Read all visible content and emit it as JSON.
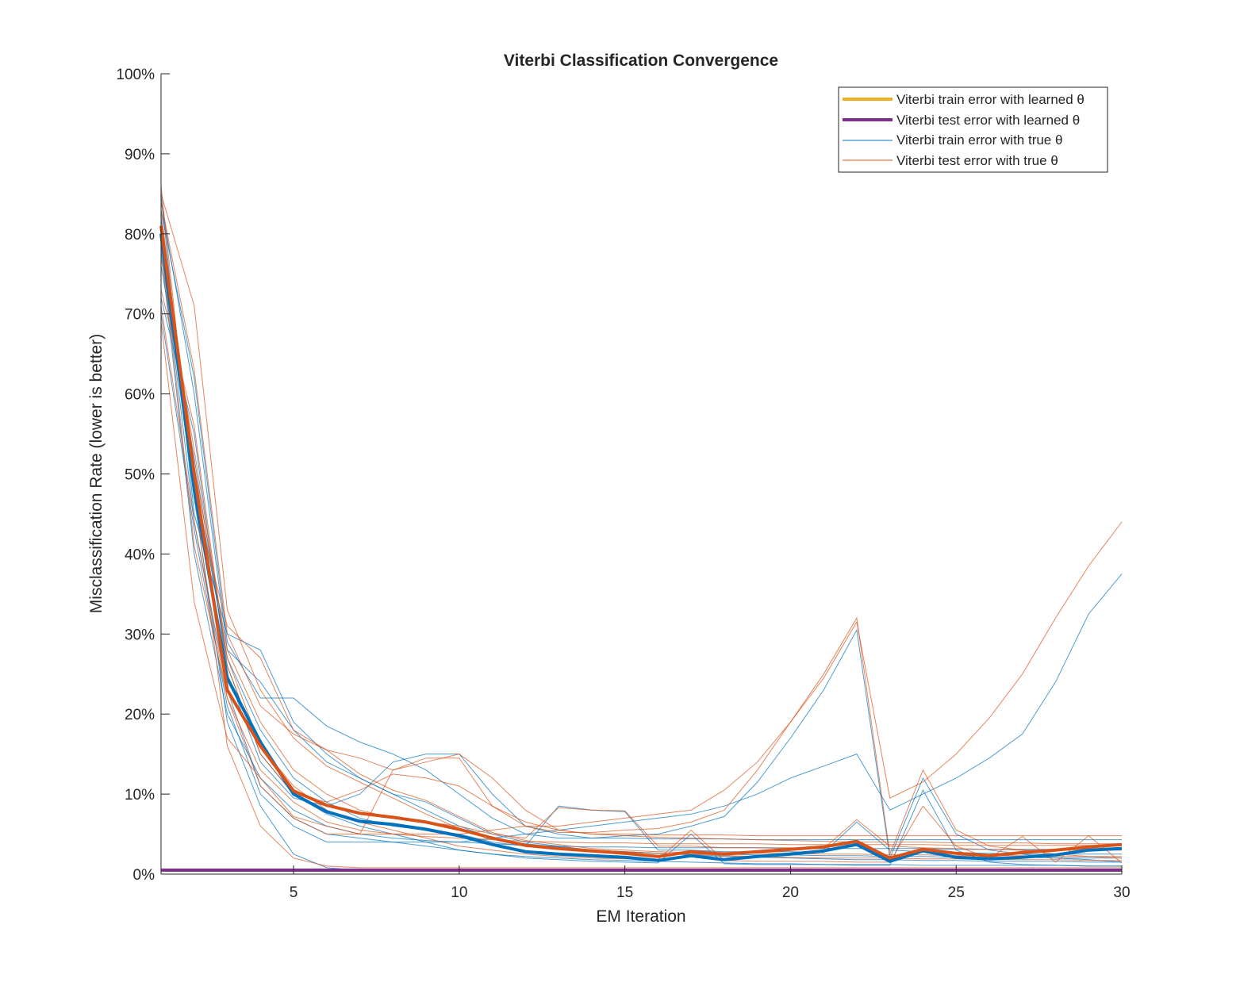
{
  "chart_data": {
    "type": "line",
    "title": "Viterbi Classification Convergence",
    "xlabel": "EM Iteration",
    "ylabel": "Misclassification Rate (lower is better)",
    "xlim": [
      1,
      30
    ],
    "ylim": [
      0,
      1
    ],
    "x_ticks": [
      5,
      10,
      15,
      20,
      25,
      30
    ],
    "y_ticks": [
      0,
      0.1,
      0.2,
      0.3,
      0.4,
      0.5,
      0.6,
      0.7,
      0.8,
      0.9,
      1.0
    ],
    "y_tick_labels": [
      "0%",
      "10%",
      "20%",
      "30%",
      "40%",
      "50%",
      "60%",
      "70%",
      "80%",
      "90%",
      "100%"
    ],
    "legend_position": "top-right",
    "legend": [
      {
        "label": "Viterbi train error with learned θ",
        "color": "#EDB120",
        "width": "thick"
      },
      {
        "label": "Viterbi test error with learned θ",
        "color": "#7E2F8E",
        "width": "thick"
      },
      {
        "label": "Viterbi train error with true θ",
        "color": "#0072BD",
        "width": "thin"
      },
      {
        "label": "Viterbi test error with true θ",
        "color": "#D95319",
        "width": "thin"
      }
    ],
    "mean_series": [
      {
        "color": "#0072BD",
        "x": [
          1,
          2,
          3,
          4,
          5,
          6,
          7,
          8,
          9,
          10,
          11,
          12,
          13,
          14,
          15,
          16,
          17,
          18,
          19,
          20,
          21,
          22,
          23,
          24,
          25,
          26,
          27,
          28,
          29,
          30
        ],
        "values": [
          0.8,
          0.48,
          0.245,
          0.165,
          0.1,
          0.078,
          0.066,
          0.062,
          0.056,
          0.048,
          0.037,
          0.028,
          0.025,
          0.023,
          0.021,
          0.017,
          0.023,
          0.018,
          0.022,
          0.025,
          0.029,
          0.037,
          0.016,
          0.029,
          0.021,
          0.019,
          0.021,
          0.024,
          0.03,
          0.032
        ]
      },
      {
        "color": "#D95319",
        "x": [
          1,
          2,
          3,
          4,
          5,
          6,
          7,
          8,
          9,
          10,
          11,
          12,
          13,
          14,
          15,
          16,
          17,
          18,
          19,
          20,
          21,
          22,
          23,
          24,
          25,
          26,
          27,
          28,
          29,
          30
        ],
        "values": [
          0.81,
          0.5,
          0.23,
          0.16,
          0.104,
          0.086,
          0.076,
          0.071,
          0.065,
          0.056,
          0.045,
          0.036,
          0.032,
          0.029,
          0.026,
          0.022,
          0.028,
          0.025,
          0.028,
          0.031,
          0.034,
          0.041,
          0.02,
          0.031,
          0.026,
          0.023,
          0.027,
          0.03,
          0.034,
          0.037
        ]
      },
      {
        "color": "#7E2F8E",
        "x": [
          1,
          30
        ],
        "values": [
          0.005,
          0.005
        ]
      }
    ],
    "run_series": [
      {
        "values": [
          0.85,
          0.45,
          0.3,
          0.28,
          0.19,
          0.15,
          0.12,
          0.1,
          0.09,
          0.07,
          0.05,
          0.04,
          0.035,
          0.03,
          0.028,
          0.026,
          0.025,
          0.025,
          0.024,
          0.024,
          0.023,
          0.023,
          0.022,
          0.022,
          0.021,
          0.021,
          0.021,
          0.02,
          0.02,
          0.02
        ]
      },
      {
        "values": [
          0.78,
          0.4,
          0.2,
          0.12,
          0.08,
          0.06,
          0.05,
          0.045,
          0.042,
          0.04,
          0.038,
          0.036,
          0.035,
          0.034,
          0.034,
          0.033,
          0.033,
          0.033,
          0.033,
          0.032,
          0.032,
          0.032,
          0.032,
          0.032,
          0.031,
          0.031,
          0.031,
          0.031,
          0.031,
          0.031
        ]
      },
      {
        "values": [
          0.72,
          0.55,
          0.25,
          0.14,
          0.095,
          0.085,
          0.1,
          0.14,
          0.15,
          0.15,
          0.1,
          0.06,
          0.05,
          0.045,
          0.045,
          0.044,
          0.044,
          0.044,
          0.043,
          0.043,
          0.043,
          0.043,
          0.043,
          0.043,
          0.043,
          0.043,
          0.043,
          0.043,
          0.043,
          0.043
        ]
      },
      {
        "values": [
          0.83,
          0.62,
          0.29,
          0.22,
          0.22,
          0.185,
          0.165,
          0.15,
          0.13,
          0.1,
          0.07,
          0.05,
          0.045,
          0.045,
          0.048,
          0.05,
          0.06,
          0.072,
          0.115,
          0.17,
          0.23,
          0.305,
          0.02,
          0.12,
          0.05,
          0.03,
          0.025,
          0.02,
          0.018,
          0.015
        ]
      },
      {
        "values": [
          0.8,
          0.5,
          0.27,
          0.18,
          0.12,
          0.09,
          0.07,
          0.06,
          0.055,
          0.05,
          0.04,
          0.035,
          0.085,
          0.08,
          0.078,
          0.03,
          0.03,
          0.028,
          0.028,
          0.028,
          0.027,
          0.065,
          0.03,
          0.028,
          0.027,
          0.026,
          0.025,
          0.025,
          0.025,
          0.025
        ]
      },
      {
        "values": [
          0.7,
          0.43,
          0.21,
          0.1,
          0.06,
          0.04,
          0.04,
          0.04,
          0.04,
          0.04,
          0.045,
          0.05,
          0.055,
          0.06,
          0.065,
          0.07,
          0.075,
          0.085,
          0.1,
          0.12,
          0.135,
          0.15,
          0.08,
          0.1,
          0.12,
          0.145,
          0.175,
          0.24,
          0.325,
          0.375
        ]
      },
      {
        "values": [
          0.82,
          0.47,
          0.19,
          0.085,
          0.025,
          0.008,
          0.005,
          0.005,
          0.005,
          0.005,
          0.005,
          0.005,
          0.005,
          0.005,
          0.005,
          0.005,
          0.005,
          0.005,
          0.005,
          0.005,
          0.005,
          0.005,
          0.005,
          0.005,
          0.005,
          0.005,
          0.005,
          0.005,
          0.005,
          0.005
        ]
      },
      {
        "values": [
          0.76,
          0.52,
          0.26,
          0.15,
          0.1,
          0.075,
          0.06,
          0.05,
          0.04,
          0.03,
          0.025,
          0.02,
          0.018,
          0.016,
          0.015,
          0.014,
          0.05,
          0.013,
          0.012,
          0.012,
          0.012,
          0.011,
          0.011,
          0.105,
          0.03,
          0.015,
          0.012,
          0.011,
          0.01,
          0.01
        ]
      },
      {
        "values": [
          0.79,
          0.44,
          0.23,
          0.11,
          0.07,
          0.05,
          0.045,
          0.04,
          0.035,
          0.03,
          0.025,
          0.022,
          0.02,
          0.018,
          0.017,
          0.016,
          0.015,
          0.014,
          0.013,
          0.013,
          0.012,
          0.012,
          0.012,
          0.011,
          0.011,
          0.011,
          0.011,
          0.011,
          0.01,
          0.01
        ]
      },
      {
        "values": [
          0.84,
          0.6,
          0.28,
          0.24,
          0.18,
          0.14,
          0.12,
          0.1,
          0.08,
          0.06,
          0.045,
          0.038,
          0.034,
          0.03,
          0.028,
          0.026,
          0.024,
          0.022,
          0.021,
          0.02,
          0.019,
          0.018,
          0.018,
          0.017,
          0.017,
          0.016,
          0.016,
          0.016,
          0.015,
          0.015
        ]
      }
    ],
    "run_test_series": [
      {
        "values": [
          0.86,
          0.47,
          0.31,
          0.27,
          0.18,
          0.155,
          0.125,
          0.105,
          0.092,
          0.072,
          0.052,
          0.042,
          0.037,
          0.032,
          0.03,
          0.028,
          0.027,
          0.027,
          0.026,
          0.026,
          0.025,
          0.025,
          0.024,
          0.024,
          0.023,
          0.023,
          0.023,
          0.022,
          0.022,
          0.022
        ]
      },
      {
        "values": [
          0.79,
          0.41,
          0.22,
          0.13,
          0.09,
          0.065,
          0.055,
          0.05,
          0.047,
          0.045,
          0.043,
          0.041,
          0.04,
          0.039,
          0.039,
          0.038,
          0.038,
          0.038,
          0.038,
          0.037,
          0.037,
          0.037,
          0.037,
          0.037,
          0.036,
          0.036,
          0.036,
          0.036,
          0.036,
          0.036
        ]
      },
      {
        "values": [
          0.73,
          0.56,
          0.26,
          0.15,
          0.1,
          0.09,
          0.105,
          0.125,
          0.12,
          0.11,
          0.085,
          0.065,
          0.055,
          0.05,
          0.05,
          0.049,
          0.049,
          0.049,
          0.048,
          0.048,
          0.048,
          0.048,
          0.048,
          0.048,
          0.048,
          0.048,
          0.048,
          0.048,
          0.048,
          0.048
        ]
      },
      {
        "values": [
          0.84,
          0.63,
          0.3,
          0.21,
          0.175,
          0.155,
          0.145,
          0.13,
          0.145,
          0.145,
          0.085,
          0.06,
          0.052,
          0.052,
          0.055,
          0.057,
          0.065,
          0.08,
          0.13,
          0.19,
          0.25,
          0.32,
          0.025,
          0.13,
          0.055,
          0.035,
          0.03,
          0.025,
          0.022,
          0.02
        ]
      },
      {
        "values": [
          0.81,
          0.51,
          0.28,
          0.19,
          0.13,
          0.1,
          0.08,
          0.07,
          0.065,
          0.06,
          0.05,
          0.045,
          0.083,
          0.08,
          0.079,
          0.035,
          0.035,
          0.033,
          0.033,
          0.033,
          0.032,
          0.068,
          0.035,
          0.033,
          0.032,
          0.031,
          0.03,
          0.03,
          0.03,
          0.03
        ]
      },
      {
        "values": [
          0.71,
          0.44,
          0.22,
          0.11,
          0.07,
          0.05,
          0.05,
          0.05,
          0.05,
          0.05,
          0.055,
          0.06,
          0.06,
          0.065,
          0.07,
          0.075,
          0.08,
          0.105,
          0.14,
          0.19,
          0.245,
          0.315,
          0.095,
          0.115,
          0.15,
          0.195,
          0.25,
          0.32,
          0.385,
          0.44
        ]
      },
      {
        "values": [
          0.83,
          0.48,
          0.16,
          0.06,
          0.02,
          0.01,
          0.008,
          0.008,
          0.008,
          0.008,
          0.008,
          0.008,
          0.008,
          0.008,
          0.008,
          0.008,
          0.008,
          0.008,
          0.008,
          0.008,
          0.008,
          0.008,
          0.008,
          0.008,
          0.008,
          0.008,
          0.008,
          0.008,
          0.008,
          0.008
        ]
      },
      {
        "values": [
          0.77,
          0.53,
          0.27,
          0.16,
          0.11,
          0.08,
          0.065,
          0.055,
          0.045,
          0.035,
          0.03,
          0.025,
          0.022,
          0.02,
          0.019,
          0.018,
          0.055,
          0.017,
          0.016,
          0.016,
          0.016,
          0.015,
          0.015,
          0.085,
          0.035,
          0.02,
          0.047,
          0.015,
          0.048,
          0.014
        ]
      },
      {
        "values": [
          0.69,
          0.34,
          0.17,
          0.12,
          0.072,
          0.06,
          0.05,
          0.13,
          0.14,
          0.15,
          0.12,
          0.08,
          0.055,
          0.05,
          0.048,
          0.046,
          0.045,
          0.044,
          0.043,
          0.042,
          0.041,
          0.04,
          0.04,
          0.04,
          0.039,
          0.039,
          0.039,
          0.038,
          0.038,
          0.038
        ]
      },
      {
        "values": [
          0.85,
          0.71,
          0.33,
          0.23,
          0.17,
          0.135,
          0.115,
          0.095,
          0.075,
          0.057,
          0.044,
          0.037,
          0.033,
          0.03,
          0.028,
          0.026,
          0.025,
          0.023,
          0.022,
          0.021,
          0.02,
          0.02,
          0.02,
          0.019,
          0.019,
          0.018,
          0.018,
          0.018,
          0.017,
          0.017
        ]
      }
    ]
  }
}
